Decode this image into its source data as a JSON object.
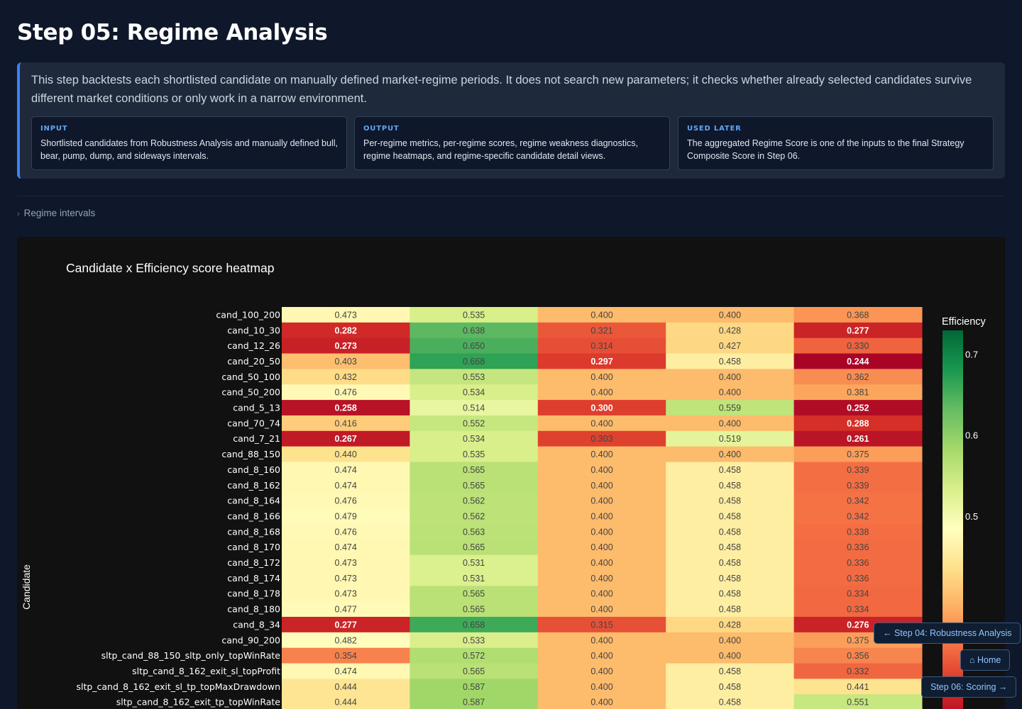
{
  "page": {
    "title": "Step 05: Regime Analysis",
    "intro": "This step backtests each shortlisted candidate on manually defined market-regime periods. It does not search new parameters; it checks whether already selected candidates survive different market conditions or only work in a narrow environment.",
    "cards": [
      {
        "label": "INPUT",
        "body": "Shortlisted candidates from Robustness Analysis and manually defined bull, bear, pump, dump, and sideways intervals."
      },
      {
        "label": "OUTPUT",
        "body": "Per-regime metrics, per-regime scores, regime weakness diagnostics, regime heatmaps, and regime-specific candidate detail views."
      },
      {
        "label": "USED LATER",
        "body": "The aggregated Regime Score is one of the inputs to the final Strategy Composite Score in Step 06."
      }
    ],
    "regime_toggle": "Regime intervals",
    "toggle_icon": "chevron-right-icon"
  },
  "nav": {
    "prev": "← Step 04: Robustness Analysis",
    "home": "⌂ Home",
    "next": "Step 06: Scoring →"
  },
  "chart_data": {
    "type": "heatmap",
    "title": "Candidate x Efficiency score heatmap",
    "ylabel": "Candidate",
    "colorbar_title": "Efficiency",
    "colorscale": "RdYlGn",
    "zmin": 0.24,
    "zmax": 0.73,
    "colorbar_ticks": [
      0.5,
      0.6,
      0.7
    ],
    "columns": 5,
    "rows": [
      "cand_100_200",
      "cand_10_30",
      "cand_12_26",
      "cand_20_50",
      "cand_50_100",
      "cand_50_200",
      "cand_5_13",
      "cand_70_74",
      "cand_7_21",
      "cand_88_150",
      "cand_8_160",
      "cand_8_162",
      "cand_8_164",
      "cand_8_166",
      "cand_8_168",
      "cand_8_170",
      "cand_8_172",
      "cand_8_174",
      "cand_8_178",
      "cand_8_180",
      "cand_8_34",
      "cand_90_200",
      "sltp_cand_88_150_sltp_only_topWinRate",
      "sltp_cand_8_162_exit_sl_topProfit",
      "sltp_cand_8_162_exit_sl_tp_topMaxDrawdown",
      "sltp_cand_8_162_exit_tp_topWinRate"
    ],
    "values": [
      [
        0.473,
        0.535,
        0.4,
        0.4,
        0.368
      ],
      [
        0.282,
        0.638,
        0.321,
        0.428,
        0.277
      ],
      [
        0.273,
        0.65,
        0.314,
        0.427,
        0.33
      ],
      [
        0.403,
        0.668,
        0.297,
        0.458,
        0.244
      ],
      [
        0.432,
        0.553,
        0.4,
        0.4,
        0.362
      ],
      [
        0.476,
        0.534,
        0.4,
        0.4,
        0.381
      ],
      [
        0.258,
        0.514,
        0.3,
        0.559,
        0.252
      ],
      [
        0.416,
        0.552,
        0.4,
        0.4,
        0.288
      ],
      [
        0.267,
        0.534,
        0.303,
        0.519,
        0.261
      ],
      [
        0.44,
        0.535,
        0.4,
        0.4,
        0.375
      ],
      [
        0.474,
        0.565,
        0.4,
        0.458,
        0.339
      ],
      [
        0.474,
        0.565,
        0.4,
        0.458,
        0.339
      ],
      [
        0.476,
        0.562,
        0.4,
        0.458,
        0.342
      ],
      [
        0.479,
        0.562,
        0.4,
        0.458,
        0.342
      ],
      [
        0.476,
        0.563,
        0.4,
        0.458,
        0.338
      ],
      [
        0.474,
        0.565,
        0.4,
        0.458,
        0.336
      ],
      [
        0.473,
        0.531,
        0.4,
        0.458,
        0.336
      ],
      [
        0.473,
        0.531,
        0.4,
        0.458,
        0.336
      ],
      [
        0.473,
        0.565,
        0.4,
        0.458,
        0.334
      ],
      [
        0.477,
        0.565,
        0.4,
        0.458,
        0.334
      ],
      [
        0.277,
        0.658,
        0.315,
        0.428,
        0.276
      ],
      [
        0.482,
        0.533,
        0.4,
        0.4,
        0.375
      ],
      [
        0.354,
        0.572,
        0.4,
        0.4,
        0.356
      ],
      [
        0.474,
        0.565,
        0.4,
        0.458,
        0.332
      ],
      [
        0.444,
        0.587,
        0.4,
        0.458,
        0.441
      ],
      [
        0.444,
        0.587,
        0.4,
        0.458,
        0.551
      ]
    ]
  }
}
